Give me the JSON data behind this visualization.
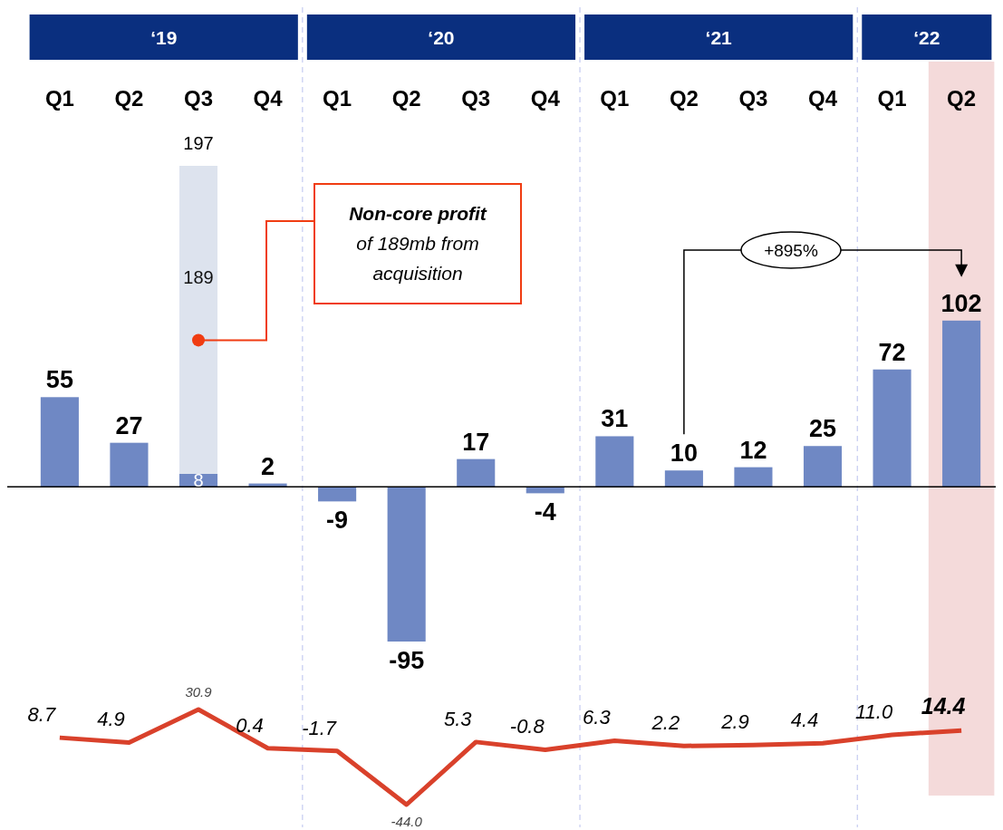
{
  "chart_data": [
    {
      "type": "bar",
      "categories": [
        "Q1",
        "Q2",
        "Q3",
        "Q4",
        "Q1",
        "Q2",
        "Q3",
        "Q4",
        "Q1",
        "Q2",
        "Q3",
        "Q4",
        "Q1",
        "Q2"
      ],
      "stacked": true,
      "data_labels": true,
      "series": [
        {
          "color": "#6f88c4",
          "values": [
            55,
            27,
            8,
            2,
            -9,
            -95,
            17,
            -4,
            31,
            10,
            12,
            25,
            72,
            102
          ]
        },
        {
          "color": "#dde3ee",
          "values": [
            null,
            null,
            189,
            null,
            null,
            null,
            null,
            null,
            null,
            null,
            null,
            null,
            null,
            null
          ]
        }
      ],
      "totals": [
        null,
        null,
        "197",
        null,
        null,
        null,
        null,
        null,
        null,
        null,
        null,
        null,
        null,
        null
      ],
      "annotations": [
        "‘19",
        "‘20",
        "‘21",
        "‘22",
        "Non-core profit\nof 189mb from\nacquisition",
        "+895%"
      ]
    },
    {
      "type": "line",
      "categories": [
        null,
        null,
        null,
        null,
        null,
        null,
        null,
        null,
        null,
        null,
        null,
        null,
        null,
        null
      ],
      "series": [
        {
          "color": "#d9412b",
          "values": [
            8.7,
            4.9,
            30.9,
            0.4,
            -1.7,
            -44.0,
            5.3,
            -0.8,
            6.3,
            2.2,
            2.9,
            4.4,
            11.0,
            14.4
          ],
          "value_labels": [
            "8.7",
            "4.9",
            "30.9",
            "0.4",
            "-1.7",
            "-44.0",
            "5.3",
            "-0.8",
            "6.3",
            "2.2",
            "2.9",
            "4.4",
            "11.0",
            "14.4"
          ]
        }
      ]
    }
  ]
}
